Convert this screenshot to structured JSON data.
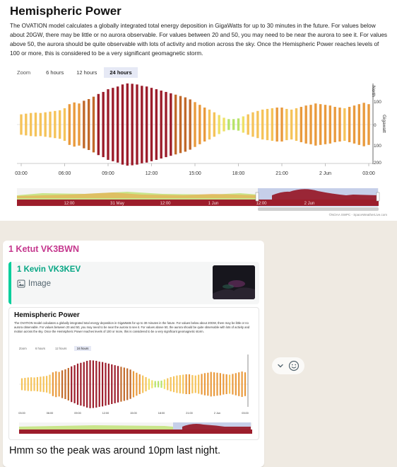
{
  "top": {
    "title": "Hemispheric Power",
    "description": "The OVATION model calculates a globally integrated total energy deposition in GigaWatts for up to 30 minutes in the future. For values below about 20GW, there may be little or no aurora observable. For values between 20 and 50, you may need to be near the aurora to see it. For values above 50, the aurora should be quite observable with lots of activity and motion across the sky. Once the Hemispheric Power reaches levels of 100 or more, this is considered to be a very significant geomagnetic storm.",
    "zoom": {
      "label": "Zoom",
      "options": [
        "6 hours",
        "12 hours",
        "24 hours"
      ],
      "selected": "24 hours"
    },
    "x_ticks": [
      "03:00",
      "06:00",
      "09:00",
      "12:00",
      "15:00",
      "18:00",
      "21:00",
      "2 Jun",
      "03:00"
    ],
    "nav_ticks": [
      "12:00",
      "31 May",
      "12:00",
      "1 Jun",
      "12:00",
      "2 Jun"
    ],
    "credit": "©NOAA SWPC - SpaceWeatherLive.com",
    "axis_label": "Gigawatt",
    "axis_top_label": "North",
    "axis_ticks": [
      "100",
      "0",
      "100",
      "200"
    ]
  },
  "chat": {
    "sender": "1 Ketut VK3BWN",
    "quote": {
      "name": "1 Kevin VK3KEV",
      "type_label": "Image",
      "type_icon": "image-icon"
    },
    "message": "Hmm so the peak was around 10pm last night.",
    "reaction_icons": [
      "chevron-down-icon",
      "smiley-icon"
    ],
    "mini": {
      "title": "Hemispheric Power",
      "description": "The OVATION model calculates a globally integrated total energy deposition in GigaWatts for up to 30 minutes in the future. For values below about 20GW, there may be little or no aurora observable. For values between 20 and 50, you may need to be near the aurora to see it. For values above 50, the aurora should be quite observable with lots of activity and motion across the sky. Once the Hemispheric Power reaches levels of 100 or more, this is considered to be a very significant geomagnetic storm.",
      "zoom": {
        "label": "Zoom",
        "options": [
          "6 hours",
          "12 hours",
          "24 hours"
        ]
      },
      "x_ticks": [
        "03:00",
        "06:00",
        "09:00",
        "12:00",
        "15:00",
        "18:00",
        "21:00",
        "2 Jun",
        "03:00"
      ]
    }
  },
  "colors": {
    "low": "#b8e36a",
    "mid_low": "#eee066",
    "mid": "#f5c35a",
    "high": "#e99a3d",
    "very_high": "#c1692a",
    "storm": "#9c1d2b"
  },
  "chart_data": {
    "type": "bar",
    "ylabel": "Gigawatt",
    "x": [
      "03:00",
      "03:20",
      "03:40",
      "04:00",
      "04:20",
      "04:40",
      "05:00",
      "05:20",
      "05:40",
      "06:00",
      "06:20",
      "06:40",
      "07:00",
      "07:20",
      "07:40",
      "08:00",
      "08:20",
      "08:40",
      "09:00",
      "09:20",
      "09:40",
      "10:00",
      "10:20",
      "10:40",
      "11:00",
      "11:20",
      "11:40",
      "12:00",
      "12:20",
      "12:40",
      "13:00",
      "13:20",
      "13:40",
      "14:00",
      "14:20",
      "14:40",
      "15:00",
      "15:20",
      "15:40",
      "16:00",
      "16:20",
      "16:40",
      "17:00",
      "17:20",
      "17:40",
      "18:00",
      "18:20",
      "18:40",
      "19:00",
      "19:20",
      "19:40",
      "20:00",
      "20:20",
      "20:40",
      "21:00",
      "21:20",
      "21:40",
      "22:00",
      "22:20",
      "22:40",
      "23:00",
      "23:20",
      "23:40",
      "00:00",
      "00:20",
      "00:40",
      "01:00",
      "01:20",
      "01:40",
      "02:00",
      "02:20",
      "02:40",
      "03:00"
    ],
    "values": [
      30,
      32,
      34,
      35,
      34,
      36,
      38,
      40,
      42,
      48,
      60,
      65,
      62,
      70,
      75,
      82,
      90,
      96,
      104,
      108,
      112,
      118,
      121,
      120,
      118,
      114,
      112,
      108,
      104,
      100,
      96,
      92,
      88,
      84,
      80,
      74,
      66,
      58,
      50,
      44,
      36,
      28,
      20,
      16,
      16,
      18,
      24,
      30,
      36,
      40,
      44,
      46,
      48,
      50,
      50,
      46,
      44,
      48,
      52,
      56,
      58,
      62,
      60,
      58,
      56,
      52,
      50,
      48,
      52,
      56,
      60,
      64,
      60
    ],
    "color_thresholds": {
      "low": 0,
      "mid_low": 20,
      "mid": 30,
      "high": 50,
      "very_high": 70,
      "storm": 90
    },
    "x_ticks": [
      "03:00",
      "06:00",
      "09:00",
      "12:00",
      "15:00",
      "18:00",
      "21:00",
      "2 Jun",
      "03:00"
    ]
  }
}
